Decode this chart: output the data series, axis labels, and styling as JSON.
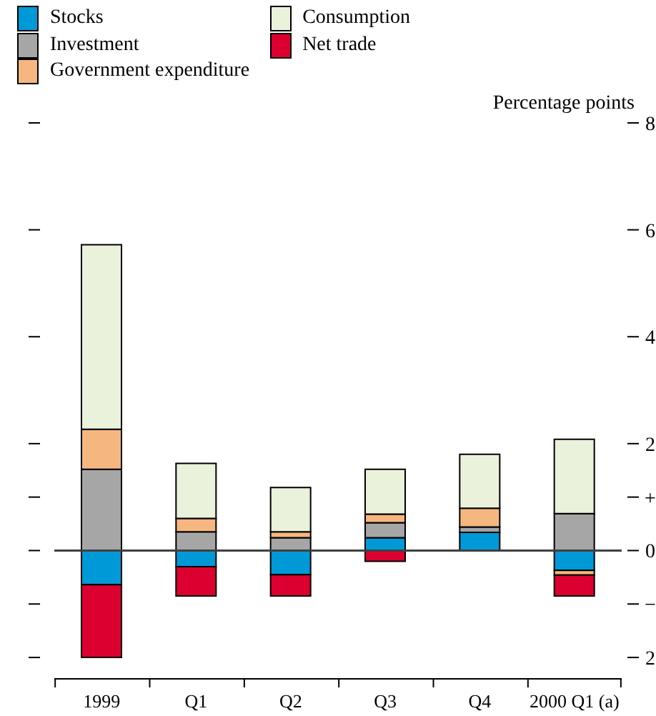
{
  "chart_data": {
    "type": "bar",
    "stacked": true,
    "ylabel": "Percentage points",
    "categories": [
      "1999",
      "Q1",
      "Q2",
      "Q3",
      "Q4",
      "2000 Q1 (a)"
    ],
    "series": [
      {
        "name": "Stocks",
        "color": "#0099d8",
        "values": [
          -0.64,
          -0.3,
          -0.45,
          0.24,
          0.34,
          -0.37
        ]
      },
      {
        "name": "Investment",
        "color": "#a6a6a6",
        "values": [
          1.52,
          0.35,
          0.24,
          0.28,
          0.1,
          0.69
        ]
      },
      {
        "name": "Government expenditure",
        "color": "#f5b77f",
        "values": [
          0.75,
          0.25,
          0.11,
          0.16,
          0.35,
          -0.09
        ]
      },
      {
        "name": "Consumption",
        "color": "#ebf2dc",
        "values": [
          3.45,
          1.03,
          0.83,
          0.84,
          1.01,
          1.39
        ]
      },
      {
        "name": "Net trade",
        "color": "#dc0030",
        "values": [
          -1.36,
          -0.55,
          -0.4,
          -0.2,
          0,
          -0.39
        ]
      }
    ],
    "ylim": [
      -2.4,
      8
    ],
    "yticks": [
      8,
      6,
      4,
      2,
      {
        "value": 1,
        "label": "+"
      },
      0,
      {
        "value": -1,
        "label": "−"
      },
      {
        "value": -2,
        "label": "2"
      }
    ],
    "ref_lines": [
      {
        "axis": "y",
        "value": 0,
        "color": "#404040"
      }
    ],
    "legend": "top left"
  }
}
